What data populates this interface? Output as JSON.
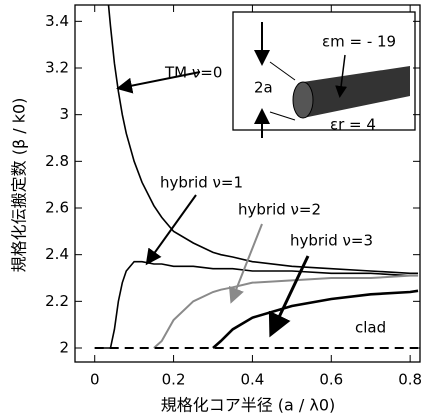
{
  "chart_data": {
    "type": "line",
    "xlabel": "規格化コア半径 (a / λ0)",
    "ylabel": "規格化伝搬定数 (β / k0)",
    "x": [
      0,
      0.02,
      0.035,
      0.04,
      0.05,
      0.06,
      0.07,
      0.08,
      0.1,
      0.12,
      0.15,
      0.17,
      0.2,
      0.25,
      0.3,
      0.32,
      0.35,
      0.4,
      0.5,
      0.6,
      0.7,
      0.8,
      0.82
    ],
    "series": [
      {
        "name": "TM ν=0",
        "color": "#000000",
        "linewidth": 1.6,
        "values": [
          null,
          null,
          3.47,
          3.38,
          3.22,
          3.1,
          3.0,
          2.92,
          2.8,
          2.71,
          2.61,
          2.56,
          2.5,
          2.45,
          2.41,
          2.4,
          2.39,
          2.37,
          2.35,
          2.34,
          2.33,
          2.32,
          2.32
        ]
      },
      {
        "name": "hybrid ν=1",
        "color": "#000000",
        "linewidth": 1.6,
        "values": [
          2,
          2,
          2,
          2,
          2.08,
          2.2,
          2.28,
          2.33,
          2.37,
          2.37,
          2.36,
          2.36,
          2.35,
          2.35,
          2.34,
          2.34,
          2.34,
          2.33,
          2.33,
          2.32,
          2.32,
          2.31,
          2.31
        ]
      },
      {
        "name": "hybrid ν=2",
        "color": "#8a8a8a",
        "linewidth": 2,
        "values": [
          null,
          null,
          null,
          null,
          null,
          null,
          null,
          null,
          null,
          null,
          2,
          2.03,
          2.12,
          2.2,
          2.24,
          2.25,
          2.26,
          2.28,
          2.29,
          2.3,
          2.3,
          2.31,
          2.31
        ]
      },
      {
        "name": "hybrid ν=3",
        "color": "#000000",
        "linewidth": 2.6,
        "values": [
          null,
          null,
          null,
          null,
          null,
          null,
          null,
          null,
          null,
          null,
          null,
          null,
          null,
          null,
          2,
          2.03,
          2.08,
          2.13,
          2.18,
          2.21,
          2.23,
          2.24,
          2.245
        ]
      },
      {
        "name": "clad",
        "color": "#000000",
        "linewidth": 2,
        "dashed": true,
        "values": [
          2,
          2,
          2,
          2,
          2,
          2,
          2,
          2,
          2,
          2,
          2,
          2,
          2,
          2,
          2,
          2,
          2,
          2,
          2,
          2,
          2,
          2,
          2
        ]
      }
    ],
    "xlim": [
      -0.05,
      0.825
    ],
    "ylim": [
      1.94,
      3.47
    ],
    "xticks": [
      0,
      0.2,
      0.4,
      0.6,
      0.8
    ],
    "yticks": [
      2,
      2.2,
      2.4,
      2.6,
      2.8,
      3,
      3.2,
      3.4
    ],
    "inset_labels": [
      "2a",
      "εm = - 19",
      "εr = 4"
    ]
  }
}
